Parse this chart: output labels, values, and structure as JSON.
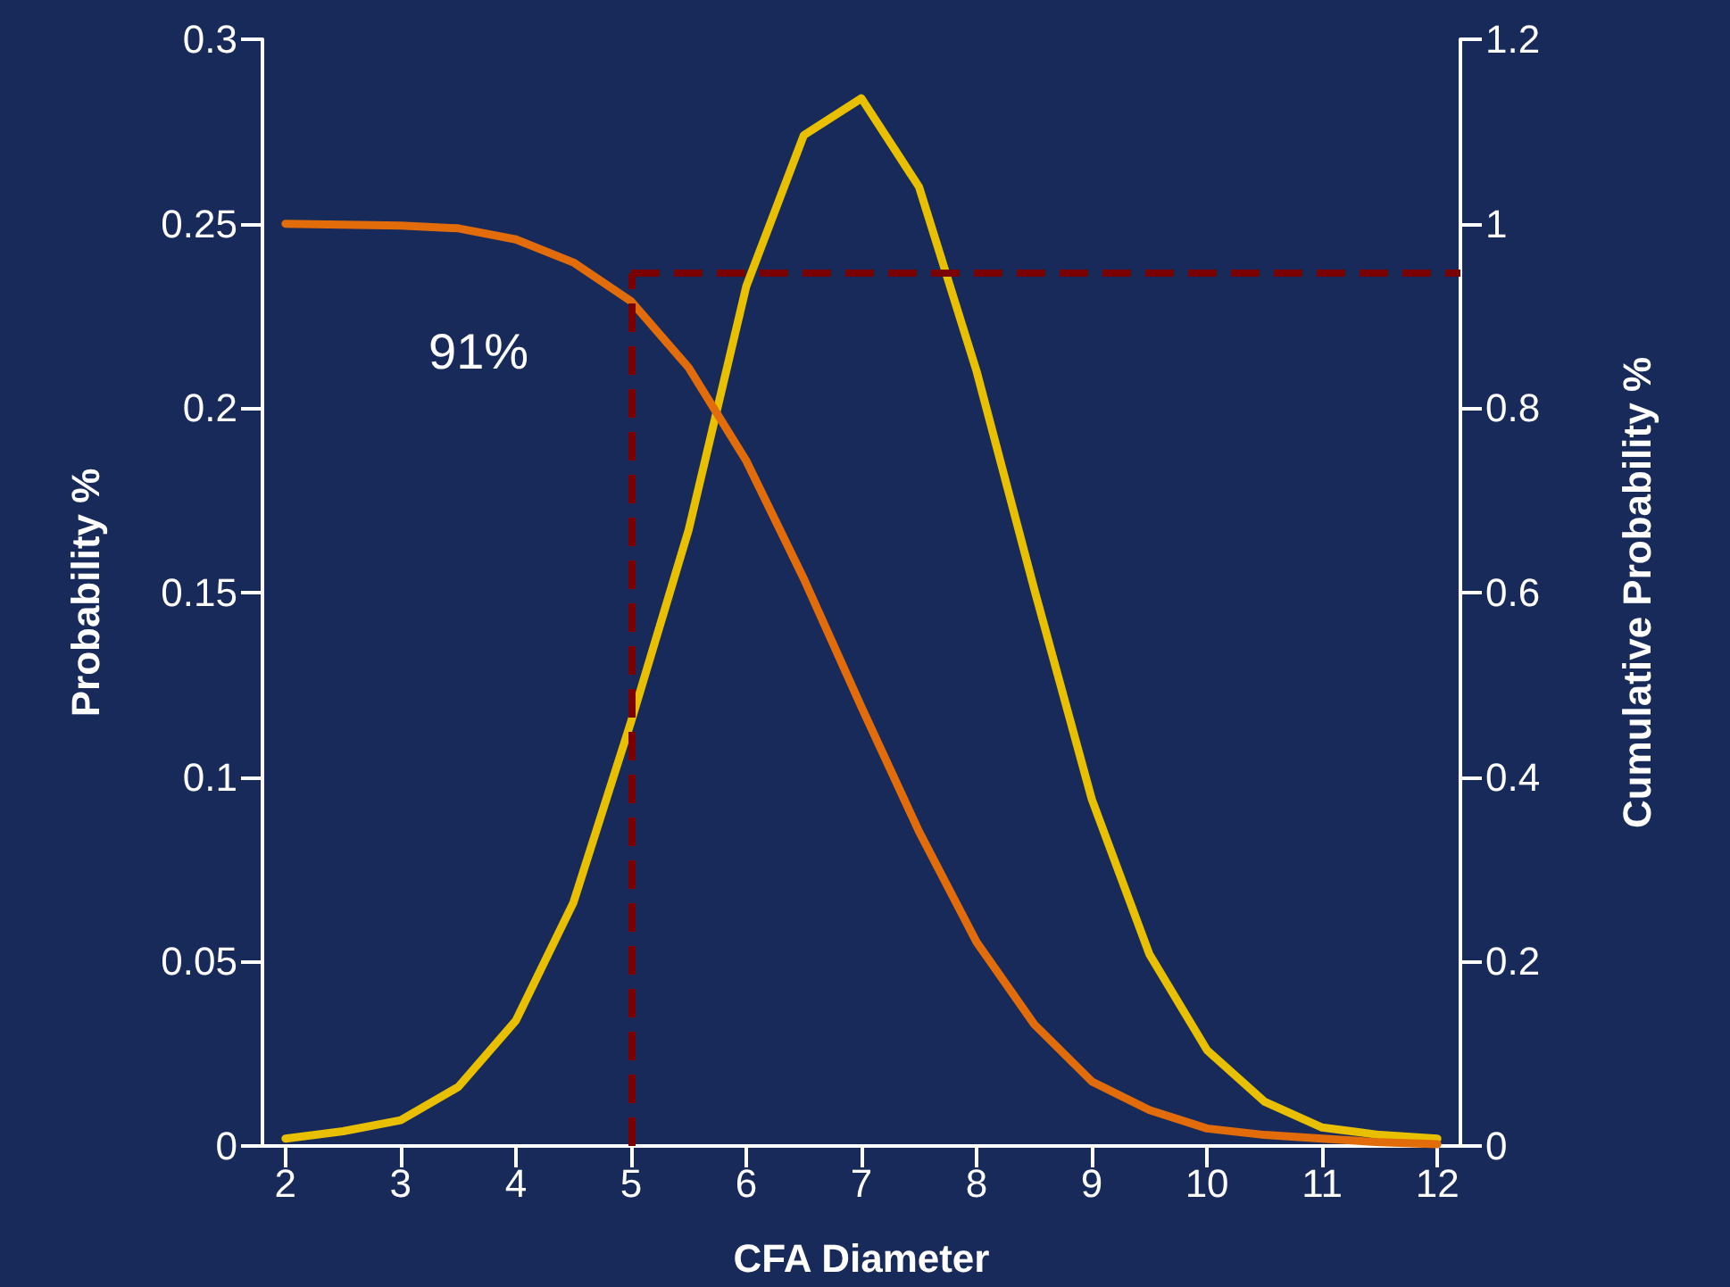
{
  "chart_data": {
    "type": "line",
    "x": [
      2,
      2.5,
      3,
      3.5,
      4,
      4.5,
      5,
      5.5,
      6,
      6.5,
      7,
      7.5,
      8,
      8.5,
      9,
      9.5,
      10,
      10.5,
      11,
      11.5,
      12
    ],
    "series": [
      {
        "color": "#e8c000",
        "values": [
          0.002,
          0.004,
          0.007,
          0.016,
          0.034,
          0.066,
          0.115,
          0.167,
          0.233,
          0.274,
          0.284,
          0.26,
          0.21,
          0.151,
          0.094,
          0.052,
          0.026,
          0.012,
          0.005,
          0.003,
          0.002
        ]
      },
      {
        "color": "#e36c0a",
        "axis": "y2",
        "values": [
          1.0,
          0.999,
          0.998,
          0.995,
          0.983,
          0.958,
          0.916,
          0.844,
          0.743,
          0.615,
          0.476,
          0.341,
          0.221,
          0.132,
          0.07,
          0.039,
          0.019,
          0.012,
          0.008,
          0.004,
          0.002
        ]
      }
    ],
    "xlabel": "CFA Diameter",
    "ylabel": "Probability %",
    "y2label": "Cumulative Probability %",
    "xlim": [
      1.8,
      12.2
    ],
    "xticks": [
      2,
      3,
      4,
      5,
      6,
      7,
      8,
      9,
      10,
      11,
      12
    ],
    "ylim": [
      0,
      0.3
    ],
    "yticks": [
      0,
      0.05,
      0.1,
      0.15,
      0.2,
      0.25,
      0.3
    ],
    "y2lim": [
      0,
      1.2
    ],
    "y2ticks": [
      0,
      0.2,
      0.4,
      0.6,
      0.8,
      1,
      1.2
    ],
    "ref_lines": [
      {
        "axis": "x",
        "value": 5,
        "color": "#7b0000",
        "line_style": "dashed"
      },
      {
        "axis": "y2",
        "value": 0.946,
        "color": "#7b0000",
        "line_style": "dashed"
      }
    ],
    "annotations": [
      "91%"
    ],
    "grid": false,
    "marker": "none",
    "line_style": "solid"
  }
}
